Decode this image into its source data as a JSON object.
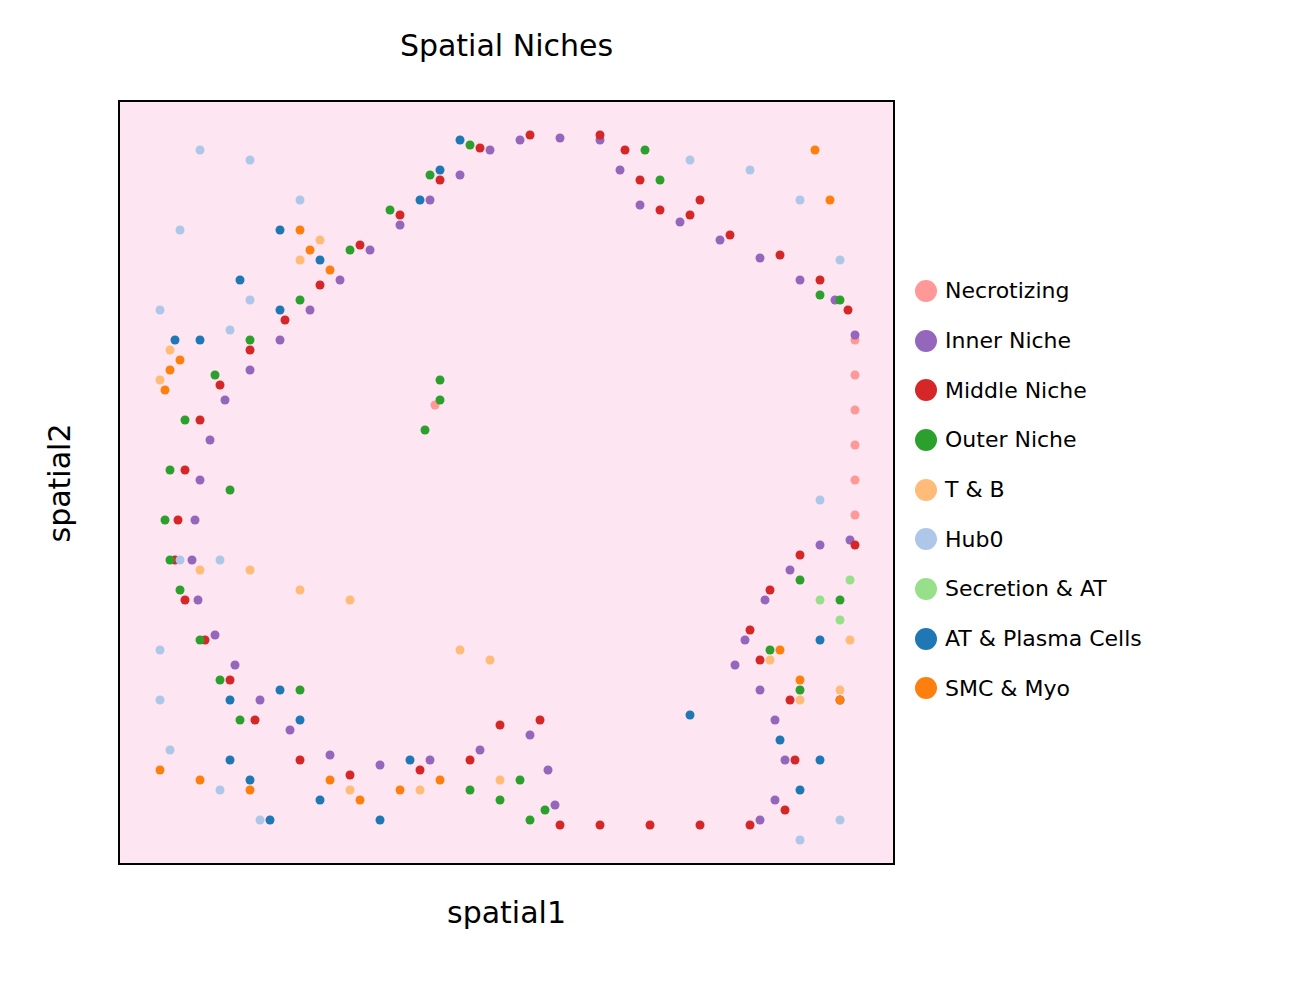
{
  "chart_data": {
    "type": "scatter",
    "title": "Spatial Niches",
    "x_label": "spatial1",
    "y_label": "spatial2",
    "xlim": [
      0,
      777
    ],
    "ylim": [
      0,
      765
    ],
    "tick_labels": false,
    "legend": "right",
    "marker": "circle",
    "series": [
      {
        "name": "Necrotizing",
        "color": "#ff9896",
        "values": [
          [
            737,
            525
          ],
          [
            737,
            490
          ],
          [
            737,
            455
          ],
          [
            737,
            420
          ],
          [
            737,
            385
          ],
          [
            737,
            350
          ],
          [
            317,
            460
          ]
        ]
      },
      {
        "name": "Inner Niche",
        "color": "#9467bd",
        "values": [
          [
            402,
            725
          ],
          [
            442,
            727
          ],
          [
            482,
            725
          ],
          [
            502,
            695
          ],
          [
            522,
            660
          ],
          [
            562,
            643
          ],
          [
            602,
            625
          ],
          [
            642,
            607
          ],
          [
            682,
            585
          ],
          [
            717,
            565
          ],
          [
            737,
            530
          ],
          [
            372,
            715
          ],
          [
            342,
            690
          ],
          [
            312,
            665
          ],
          [
            282,
            640
          ],
          [
            252,
            615
          ],
          [
            222,
            585
          ],
          [
            192,
            555
          ],
          [
            162,
            525
          ],
          [
            132,
            495
          ],
          [
            107,
            465
          ],
          [
            92,
            425
          ],
          [
            82,
            385
          ],
          [
            77,
            345
          ],
          [
            74,
            305
          ],
          [
            80,
            265
          ],
          [
            97,
            230
          ],
          [
            117,
            200
          ],
          [
            142,
            165
          ],
          [
            172,
            135
          ],
          [
            212,
            110
          ],
          [
            262,
            100
          ],
          [
            312,
            105
          ],
          [
            362,
            115
          ],
          [
            412,
            130
          ],
          [
            430,
            95
          ],
          [
            437,
            60
          ],
          [
            732,
            325
          ],
          [
            702,
            320
          ],
          [
            672,
            295
          ],
          [
            647,
            265
          ],
          [
            627,
            225
          ],
          [
            617,
            200
          ],
          [
            642,
            175
          ],
          [
            657,
            145
          ],
          [
            667,
            105
          ],
          [
            657,
            65
          ],
          [
            642,
            45
          ]
        ]
      },
      {
        "name": "Middle Niche",
        "color": "#d62728",
        "values": [
          [
            412,
            730
          ],
          [
            482,
            730
          ],
          [
            507,
            715
          ],
          [
            522,
            685
          ],
          [
            542,
            655
          ],
          [
            572,
            650
          ],
          [
            582,
            665
          ],
          [
            612,
            630
          ],
          [
            662,
            610
          ],
          [
            702,
            585
          ],
          [
            730,
            555
          ],
          [
            362,
            717
          ],
          [
            322,
            685
          ],
          [
            282,
            650
          ],
          [
            242,
            620
          ],
          [
            202,
            580
          ],
          [
            167,
            545
          ],
          [
            132,
            515
          ],
          [
            102,
            480
          ],
          [
            82,
            445
          ],
          [
            67,
            395
          ],
          [
            60,
            345
          ],
          [
            57,
            305
          ],
          [
            67,
            265
          ],
          [
            87,
            225
          ],
          [
            112,
            185
          ],
          [
            137,
            145
          ],
          [
            182,
            105
          ],
          [
            232,
            90
          ],
          [
            302,
            95
          ],
          [
            352,
            105
          ],
          [
            382,
            140
          ],
          [
            422,
            145
          ],
          [
            442,
            40
          ],
          [
            482,
            40
          ],
          [
            532,
            40
          ],
          [
            582,
            40
          ],
          [
            632,
            40
          ],
          [
            737,
            320
          ],
          [
            682,
            310
          ],
          [
            652,
            275
          ],
          [
            632,
            235
          ],
          [
            642,
            205
          ],
          [
            672,
            165
          ],
          [
            677,
            105
          ],
          [
            667,
            55
          ]
        ]
      },
      {
        "name": "Outer Niche",
        "color": "#2ca02c",
        "values": [
          [
            352,
            720
          ],
          [
            312,
            690
          ],
          [
            272,
            655
          ],
          [
            232,
            615
          ],
          [
            182,
            565
          ],
          [
            132,
            525
          ],
          [
            97,
            490
          ],
          [
            67,
            445
          ],
          [
            52,
            395
          ],
          [
            47,
            345
          ],
          [
            52,
            305
          ],
          [
            62,
            275
          ],
          [
            82,
            225
          ],
          [
            102,
            185
          ],
          [
            122,
            145
          ],
          [
            352,
            75
          ],
          [
            382,
            65
          ],
          [
            402,
            85
          ],
          [
            412,
            45
          ],
          [
            427,
            55
          ],
          [
            527,
            715
          ],
          [
            542,
            685
          ],
          [
            702,
            570
          ],
          [
            722,
            565
          ],
          [
            682,
            285
          ],
          [
            652,
            215
          ],
          [
            682,
            175
          ],
          [
            722,
            265
          ],
          [
            322,
            485
          ],
          [
            322,
            465
          ],
          [
            307,
            435
          ],
          [
            112,
            375
          ],
          [
            182,
            175
          ]
        ]
      },
      {
        "name": "T & B",
        "color": "#ffbb78",
        "values": [
          [
            42,
            485
          ],
          [
            52,
            515
          ],
          [
            182,
            605
          ],
          [
            202,
            625
          ],
          [
            82,
            295
          ],
          [
            132,
            295
          ],
          [
            182,
            275
          ],
          [
            232,
            265
          ],
          [
            342,
            215
          ],
          [
            372,
            205
          ],
          [
            652,
            205
          ],
          [
            682,
            165
          ],
          [
            722,
            175
          ],
          [
            732,
            225
          ],
          [
            232,
            75
          ],
          [
            302,
            75
          ],
          [
            382,
            85
          ]
        ]
      },
      {
        "name": "Hub0",
        "color": "#aec7e8",
        "values": [
          [
            82,
            715
          ],
          [
            132,
            705
          ],
          [
            182,
            665
          ],
          [
            62,
            635
          ],
          [
            132,
            565
          ],
          [
            112,
            535
          ],
          [
            42,
            555
          ],
          [
            572,
            705
          ],
          [
            632,
            695
          ],
          [
            682,
            665
          ],
          [
            722,
            605
          ],
          [
            62,
            305
          ],
          [
            102,
            305
          ],
          [
            42,
            165
          ],
          [
            52,
            115
          ],
          [
            102,
            75
          ],
          [
            142,
            45
          ],
          [
            702,
            365
          ],
          [
            722,
            45
          ],
          [
            682,
            25
          ],
          [
            42,
            215
          ]
        ]
      },
      {
        "name": "Secretion & AT",
        "color": "#98df8a",
        "values": [
          [
            702,
            265
          ],
          [
            722,
            245
          ],
          [
            732,
            285
          ]
        ]
      },
      {
        "name": "AT & Plasma Cells",
        "color": "#1f77b4",
        "values": [
          [
            162,
            635
          ],
          [
            202,
            605
          ],
          [
            122,
            585
          ],
          [
            162,
            555
          ],
          [
            302,
            665
          ],
          [
            322,
            695
          ],
          [
            342,
            725
          ],
          [
            57,
            525
          ],
          [
            82,
            525
          ],
          [
            162,
            175
          ],
          [
            182,
            145
          ],
          [
            112,
            165
          ],
          [
            132,
            85
          ],
          [
            152,
            45
          ],
          [
            202,
            65
          ],
          [
            262,
            45
          ],
          [
            292,
            105
          ],
          [
            662,
            125
          ],
          [
            682,
            75
          ],
          [
            702,
            105
          ],
          [
            722,
            165
          ],
          [
            702,
            225
          ],
          [
            572,
            150
          ],
          [
            112,
            105
          ]
        ]
      },
      {
        "name": "SMC & Myo",
        "color": "#ff7f0e",
        "values": [
          [
            192,
            615
          ],
          [
            212,
            595
          ],
          [
            182,
            635
          ],
          [
            52,
            495
          ],
          [
            47,
            475
          ],
          [
            62,
            505
          ],
          [
            697,
            715
          ],
          [
            712,
            665
          ],
          [
            42,
            95
          ],
          [
            82,
            85
          ],
          [
            212,
            85
          ],
          [
            242,
            65
          ],
          [
            282,
            75
          ],
          [
            322,
            85
          ],
          [
            662,
            215
          ],
          [
            682,
            185
          ],
          [
            722,
            165
          ],
          [
            132,
            75
          ]
        ]
      }
    ]
  }
}
